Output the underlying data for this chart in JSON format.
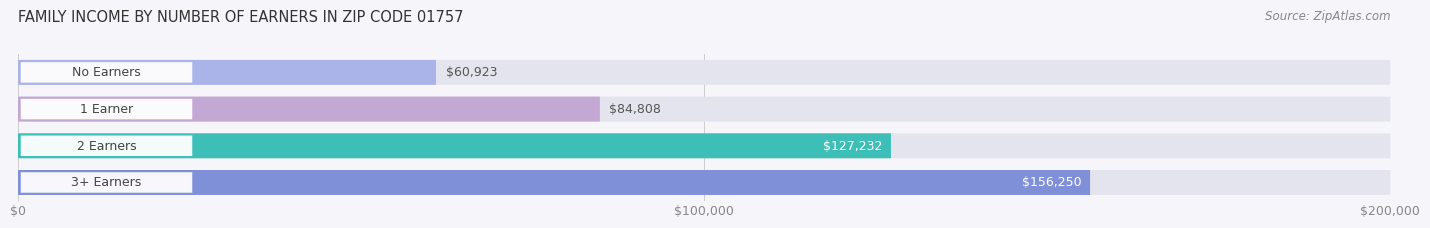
{
  "title": "FAMILY INCOME BY NUMBER OF EARNERS IN ZIP CODE 01757",
  "source": "Source: ZipAtlas.com",
  "categories": [
    "No Earners",
    "1 Earner",
    "2 Earners",
    "3+ Earners"
  ],
  "values": [
    60923,
    84808,
    127232,
    156250
  ],
  "bar_colors": [
    "#aab4e8",
    "#c4a8d4",
    "#3dbfb8",
    "#8090d8"
  ],
  "bar_bg_color": "#e4e4ee",
  "label_colors": [
    "#555555",
    "#555555",
    "#ffffff",
    "#ffffff"
  ],
  "xlim": [
    0,
    200000
  ],
  "xtick_labels": [
    "$0",
    "$100,000",
    "$200,000"
  ],
  "value_labels": [
    "$60,923",
    "$84,808",
    "$127,232",
    "$156,250"
  ],
  "background_color": "#f5f5fa",
  "title_fontsize": 10.5,
  "source_fontsize": 8.5,
  "label_fontsize": 9,
  "tick_fontsize": 9,
  "bar_height": 0.68,
  "pill_white_alpha": 0.95
}
